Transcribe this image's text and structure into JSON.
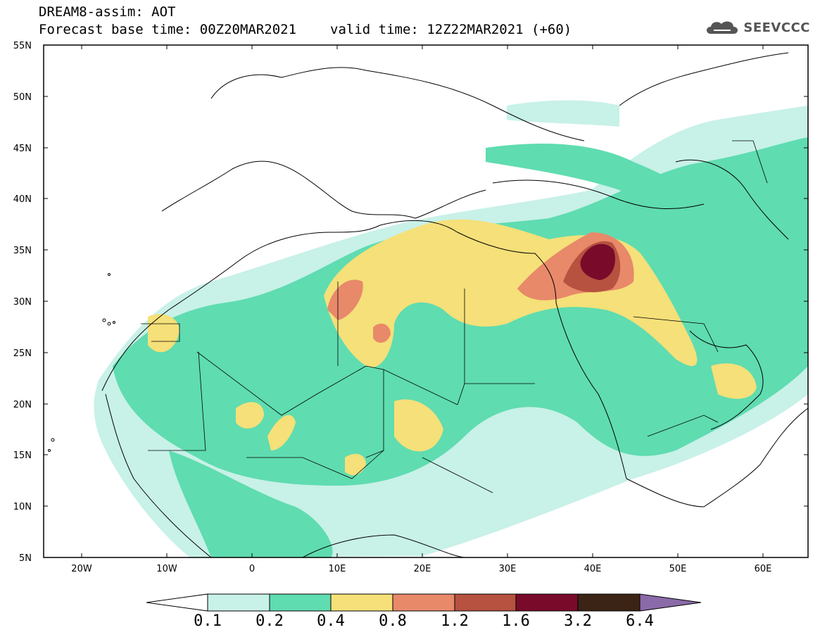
{
  "header": {
    "line1": "DREAM8-assim: AOT",
    "base_time": "Forecast base time: 00Z20MAR2021",
    "valid_time": "valid time: 12Z22MAR2021 (+60)"
  },
  "logo": {
    "text": "SEEVCCC",
    "icon": "cloud-icon"
  },
  "axes": {
    "lat_labels": [
      "55N",
      "50N",
      "45N",
      "40N",
      "35N",
      "30N",
      "25N",
      "20N",
      "15N",
      "10N",
      "5N"
    ],
    "lon_labels": [
      "20W",
      "10W",
      "0",
      "10E",
      "20E",
      "30E",
      "40E",
      "50E",
      "60E"
    ]
  },
  "colorbar": {
    "labels": [
      "0.1",
      "0.2",
      "0.4",
      "0.8",
      "1.2",
      "1.6",
      "3.2",
      "6.4"
    ],
    "colors": [
      "#ffffff",
      "#c8f1e8",
      "#5fdcb0",
      "#f5e079",
      "#e8896a",
      "#b6523f",
      "#7a0a2a",
      "#3b2415",
      "#8a6aa8"
    ]
  }
}
